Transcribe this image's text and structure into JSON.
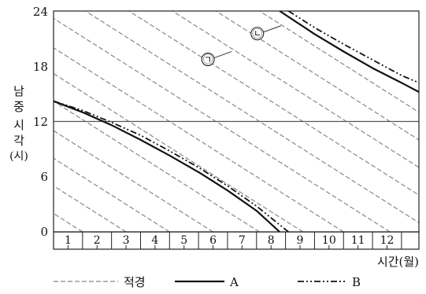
{
  "chart_data": {
    "type": "line",
    "ylabel": "남중 시각 (시)",
    "ylabel_lines": [
      "남",
      "중",
      "시",
      "각",
      "(시)"
    ],
    "xlabel": "시간(월)",
    "y_ticks": [
      "0",
      "6",
      "12",
      "18",
      "24"
    ],
    "ylim": [
      0,
      24
    ],
    "x_categories": [
      "1",
      "2",
      "3",
      "4",
      "5",
      "6",
      "7",
      "8",
      "9",
      "10",
      "11",
      "12"
    ],
    "xlim": [
      0,
      12.6
    ],
    "reference_line": {
      "y": 12
    },
    "legend": [
      {
        "key": "jeokgyeong",
        "label": "적경",
        "style": "dashed"
      },
      {
        "key": "A",
        "label": "A",
        "style": "solid"
      },
      {
        "key": "B",
        "label": "B",
        "style": "dashdot"
      }
    ],
    "annotations": [
      {
        "label": "㉠",
        "points_to": "dashed",
        "x": 5.0,
        "y": 19.0
      },
      {
        "label": "㉡",
        "points_to": "dashed",
        "x": 6.7,
        "y": 21.8
      }
    ],
    "series": [
      {
        "key": "jeokgyeong",
        "style": "dashed",
        "slope_hours_per_month": -2,
        "lines": [
          {
            "x_at_y0": 0.0
          },
          {
            "x_at_y0": 1.0
          },
          {
            "x_at_y0": 2.5
          },
          {
            "x_at_y0": 4.0
          },
          {
            "x_at_y0": 5.5
          },
          {
            "x_at_y0": 7.1
          },
          {
            "x_at_y0": 8.6
          },
          {
            "x_at_y0": 10.0
          },
          {
            "x_at_y0": 11.6
          },
          {
            "x_at_y0": 13.1
          },
          {
            "x_at_y0": 14.6
          },
          {
            "x_at_y0": 16.1
          },
          {
            "x_at_y0": 17.6
          },
          {
            "x_at_y0": 19.1
          }
        ]
      },
      {
        "key": "A",
        "style": "solid",
        "segments": [
          {
            "x": [
              0,
              1,
              2,
              3,
              4,
              5,
              6,
              7,
              7.8
            ],
            "y": [
              14.2,
              13.0,
              11.6,
              10.0,
              8.3,
              6.5,
              4.5,
              2.3,
              0
            ]
          },
          {
            "x": [
              7.8,
              9,
              10,
              11,
              12,
              12.6
            ],
            "y": [
              24,
              21.5,
              19.6,
              17.8,
              16.2,
              15.2
            ]
          }
        ]
      },
      {
        "key": "B",
        "style": "dashdot",
        "segments": [
          {
            "x": [
              0,
              1,
              2,
              3,
              4,
              5,
              6,
              7,
              8.1
            ],
            "y": [
              14.2,
              13.2,
              11.9,
              10.5,
              8.8,
              7.0,
              5.0,
              2.8,
              0
            ]
          },
          {
            "x": [
              8.1,
              9,
              10,
              11,
              12,
              12.6
            ],
            "y": [
              24,
              22.2,
              20.4,
              18.7,
              17.0,
              16.2
            ]
          }
        ]
      }
    ]
  }
}
